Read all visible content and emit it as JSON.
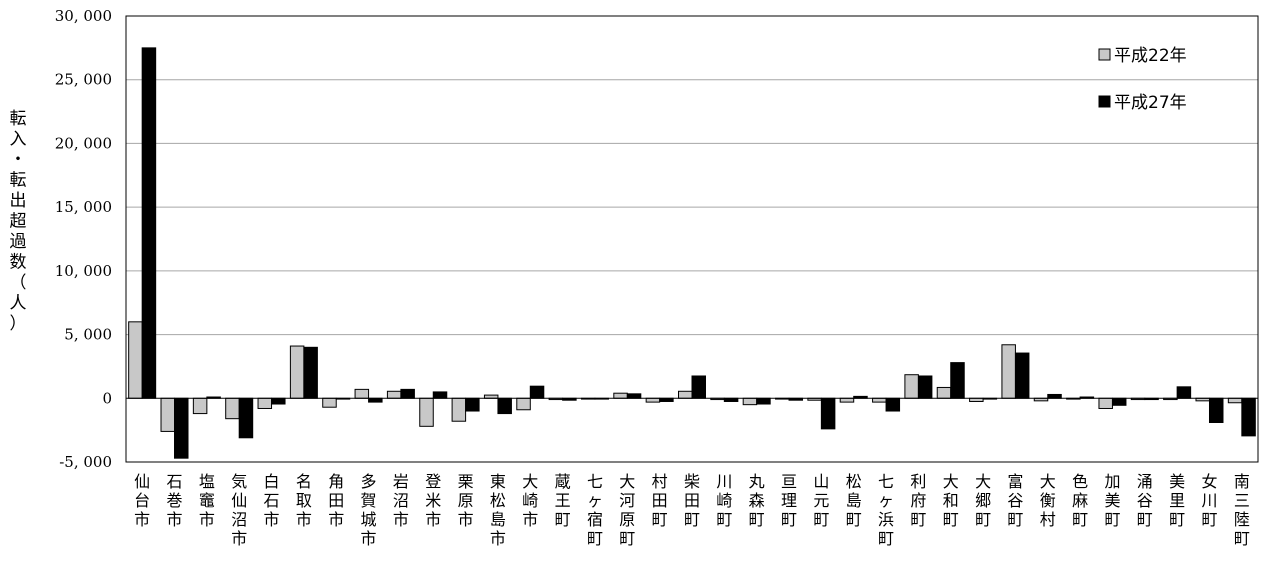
{
  "chart_data": {
    "type": "bar",
    "ylabel": "転入・転出超過数（人）",
    "ylim": [
      -5000,
      30000
    ],
    "yticks": [
      -5000,
      0,
      5000,
      10000,
      15000,
      20000,
      25000,
      30000
    ],
    "ytick_labels": [
      "-5, 000",
      "0",
      "5, 000",
      "10, 000",
      "15, 000",
      "20, 000",
      "25, 000",
      "30, 000"
    ],
    "grid": true,
    "legend_position": "top-right",
    "categories": [
      "仙台市",
      "石巻市",
      "塩竈市",
      "気仙沼市",
      "白石市",
      "名取市",
      "角田市",
      "多賀城市",
      "岩沼市",
      "登米市",
      "栗原市",
      "東松島市",
      "大崎市",
      "蔵王町",
      "七ヶ宿町",
      "大河原町",
      "村田町",
      "柴田町",
      "川崎町",
      "丸森町",
      "亘理町",
      "山元町",
      "松島町",
      "七ヶ浜町",
      "利府町",
      "大和町",
      "大郷町",
      "富谷町",
      "大衡村",
      "色麻町",
      "加美町",
      "涌谷町",
      "美里町",
      "女川町",
      "南三陸町"
    ],
    "series": [
      {
        "name": "平成22年",
        "color": "#c8c8c8",
        "values": [
          6000,
          -2600,
          -1200,
          -1600,
          -800,
          4100,
          -700,
          700,
          550,
          -2200,
          -1800,
          250,
          -900,
          -100,
          -50,
          400,
          -300,
          550,
          -100,
          -500,
          -50,
          -150,
          -300,
          -300,
          1850,
          850,
          -250,
          4200,
          -200,
          -50,
          -800,
          -100,
          -100,
          -200,
          -350
        ]
      },
      {
        "name": "平成27年",
        "color": "#000000",
        "values": [
          27500,
          -4700,
          100,
          -3100,
          -450,
          4000,
          -50,
          -300,
          700,
          500,
          -1000,
          -1200,
          950,
          -150,
          -50,
          350,
          -250,
          1750,
          -250,
          -450,
          -150,
          -2400,
          150,
          -1000,
          1750,
          2800,
          -50,
          3550,
          300,
          100,
          -550,
          -100,
          900,
          -1900,
          -2950
        ]
      }
    ]
  }
}
